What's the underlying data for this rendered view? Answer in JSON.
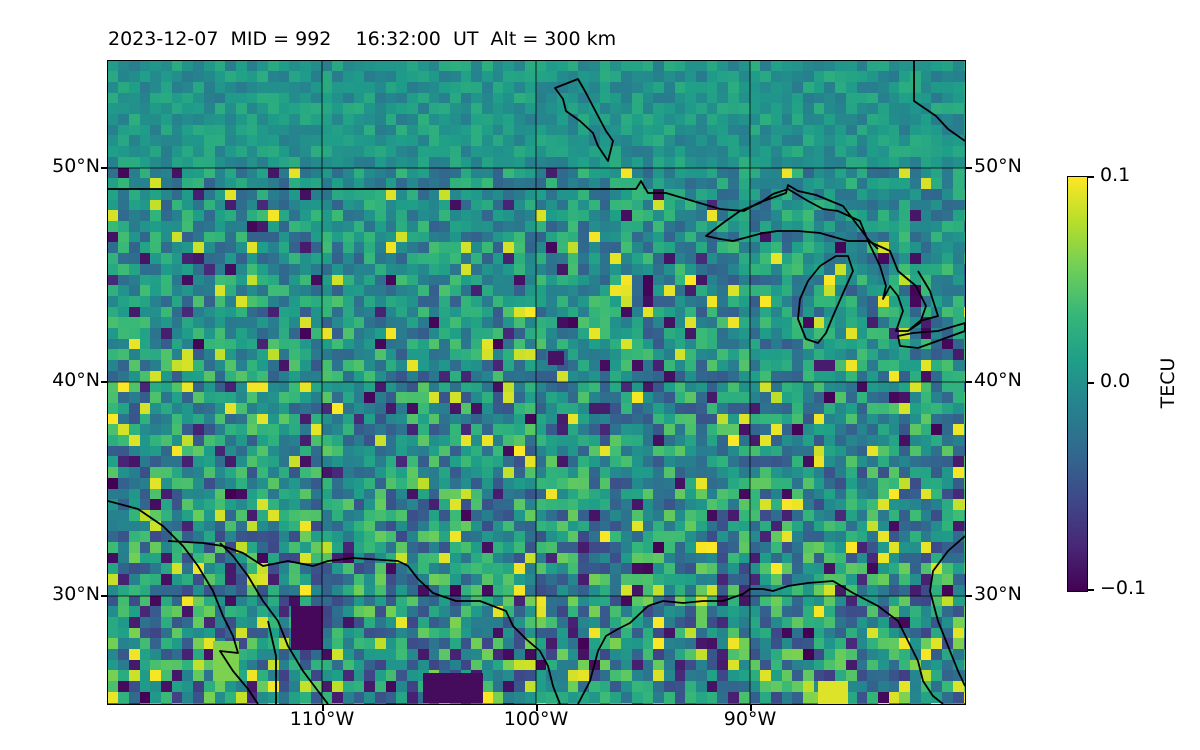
{
  "title": "2023-12-07  MID = 992    16:32:00  UT  Alt = 300 km",
  "map": {
    "lon_range": [
      -120,
      -80
    ],
    "lat_range": [
      25,
      55
    ],
    "gridlines": true,
    "lat_labels": [
      "30°N",
      "40°N",
      "50°N"
    ],
    "lon_labels": [
      "110°W",
      "100°W",
      "90°W"
    ]
  },
  "colorbar": {
    "label": "TECU",
    "ticks": [
      "0.1",
      "0.0",
      "−0.1"
    ],
    "range": [
      -0.1,
      0.1
    ],
    "colormap": "viridis"
  },
  "colors": {
    "coastline": "#000000",
    "grid": "#000000"
  }
}
